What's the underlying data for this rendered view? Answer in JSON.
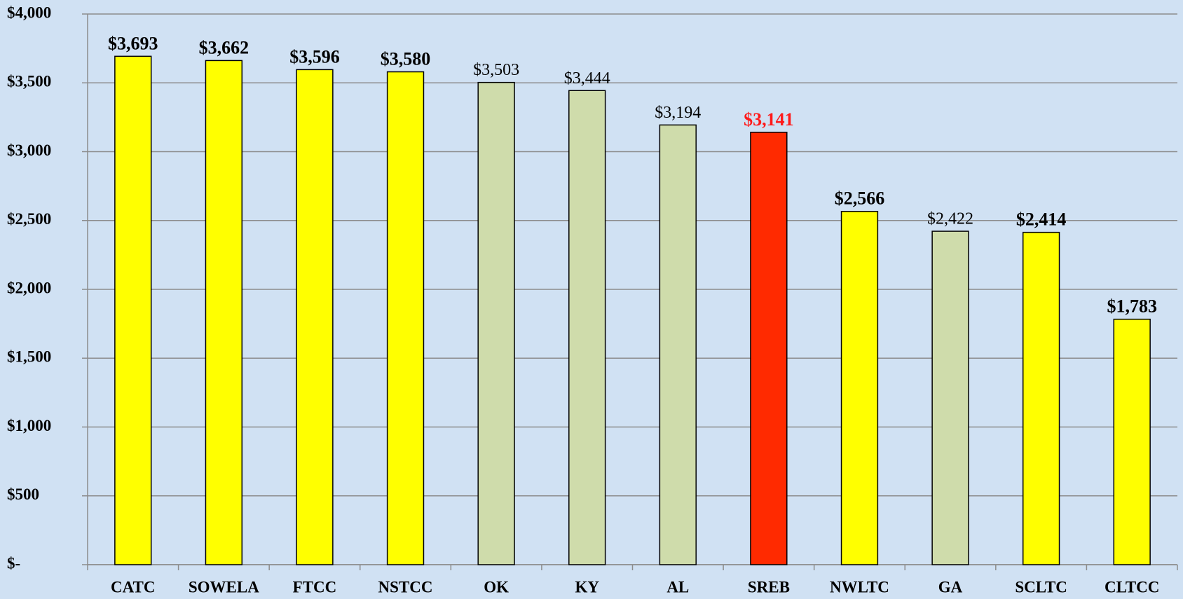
{
  "chart_data": {
    "type": "bar",
    "categories": [
      "CATC",
      "SOWELA",
      "FTCC",
      "NSTCC",
      "OK",
      "KY",
      "AL",
      "SREB",
      "NWLTC",
      "GA",
      "SCLTC",
      "CLTCC"
    ],
    "values": [
      3693,
      3662,
      3596,
      3580,
      3503,
      3444,
      3194,
      3141,
      2566,
      2422,
      2414,
      1783
    ],
    "value_labels": [
      "$3,693",
      "$3,662",
      "$3,596",
      "$3,580",
      "$3,503",
      "$3,444",
      "$3,194",
      "$3,141",
      "$2,566",
      "$2,422",
      "$2,414",
      "$1,783"
    ],
    "colors": [
      "#ffff00",
      "#ffff00",
      "#ffff00",
      "#ffff00",
      "#cfdcab",
      "#cfdcab",
      "#cfdcab",
      "#ff2a00",
      "#ffff00",
      "#cfdcab",
      "#ffff00",
      "#ffff00"
    ],
    "label_colors": [
      "#000000",
      "#000000",
      "#000000",
      "#000000",
      "#000000",
      "#000000",
      "#000000",
      "#ff1a1a",
      "#000000",
      "#000000",
      "#000000",
      "#000000"
    ],
    "label_bold": [
      true,
      true,
      true,
      true,
      false,
      false,
      false,
      true,
      true,
      false,
      true,
      true
    ],
    "ylim": [
      0,
      4000
    ],
    "yticks": [
      {
        "value": 0,
        "label": "$-"
      },
      {
        "value": 500,
        "label": "$500"
      },
      {
        "value": 1000,
        "label": "$1,000"
      },
      {
        "value": 1500,
        "label": "$1,500"
      },
      {
        "value": 2000,
        "label": "$2,000"
      },
      {
        "value": 2500,
        "label": "$2,500"
      },
      {
        "value": 3000,
        "label": "$3,000"
      },
      {
        "value": 3500,
        "label": "$3,500"
      },
      {
        "value": 4000,
        "label": "$4,000"
      }
    ],
    "grid": true
  }
}
